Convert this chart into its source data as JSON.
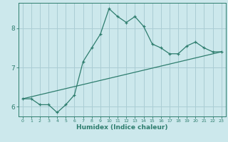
{
  "xlabel": "Humidex (Indice chaleur)",
  "bg_color": "#cce8ec",
  "line_color": "#2e7d6e",
  "grid_color": "#aacdd4",
  "xlim": [
    -0.5,
    23.5
  ],
  "ylim": [
    5.75,
    8.65
  ],
  "xticks": [
    0,
    1,
    2,
    3,
    4,
    5,
    6,
    7,
    8,
    9,
    10,
    11,
    12,
    13,
    14,
    15,
    16,
    17,
    18,
    19,
    20,
    21,
    22,
    23
  ],
  "yticks": [
    6,
    7,
    8
  ],
  "curve1_x": [
    0,
    1,
    2,
    3,
    4,
    5,
    6,
    7,
    8,
    9,
    10,
    11,
    12,
    13,
    14,
    15,
    16,
    17,
    18,
    19,
    20,
    21,
    22,
    23
  ],
  "curve1_y": [
    6.2,
    6.2,
    6.05,
    6.05,
    5.85,
    6.05,
    6.3,
    7.15,
    7.5,
    7.85,
    8.5,
    8.3,
    8.15,
    8.3,
    8.05,
    7.6,
    7.5,
    7.35,
    7.35,
    7.55,
    7.65,
    7.5,
    7.4,
    7.4
  ],
  "curve2_x": [
    0,
    23
  ],
  "curve2_y": [
    6.2,
    7.4
  ]
}
